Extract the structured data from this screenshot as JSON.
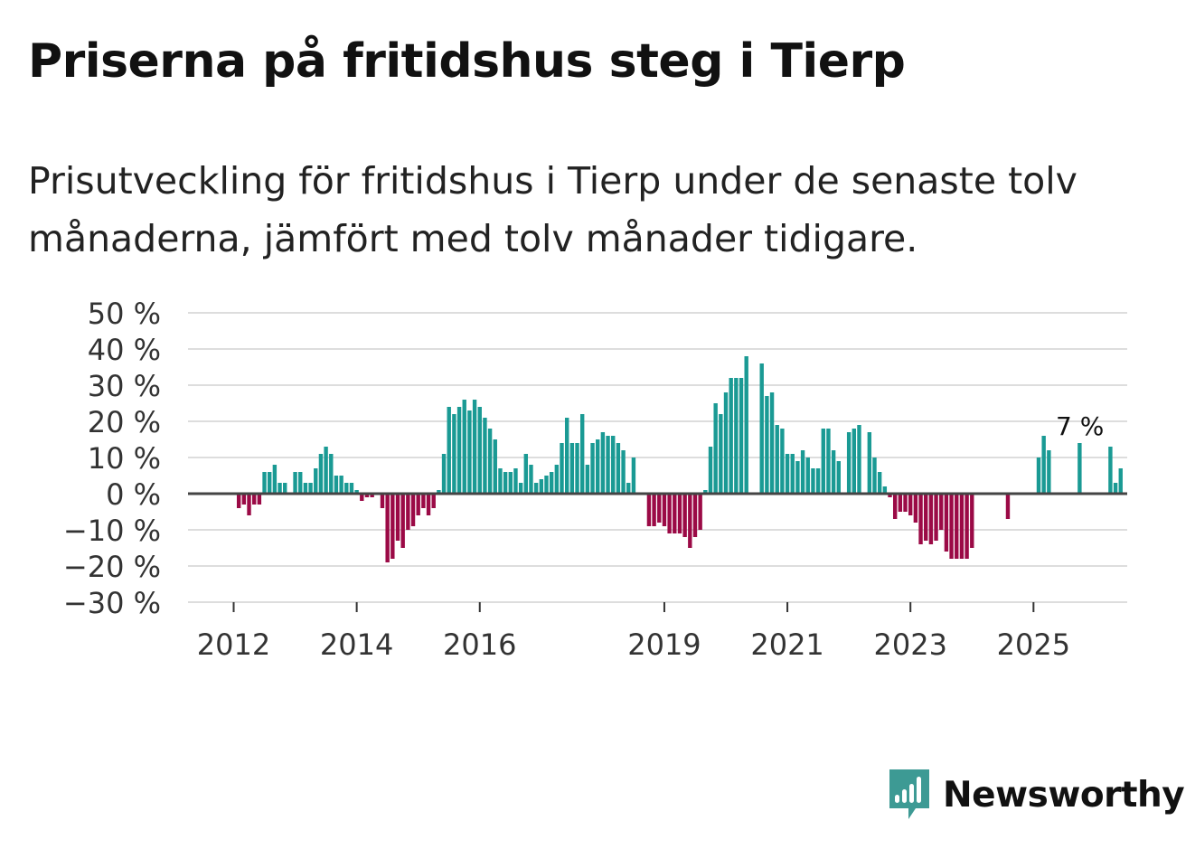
{
  "title": "Priserna på fritidshus steg i Tierp",
  "subtitle": "Prisutveckling för fritidshus i Tierp under de senaste tolv månaderna, jämfört med tolv månader tidigare.",
  "logo": {
    "text": "Newsworthy",
    "icon": "newsworthy-logo-icon"
  },
  "colors": {
    "positive": "#1a9a94",
    "negative": "#9b0a46",
    "grid": "#dddddd",
    "zero_line": "#444444",
    "brand": "#3d9a94"
  },
  "chart_data": {
    "type": "bar",
    "title": "Priserna på fritidshus steg i Tierp",
    "xlabel": "",
    "ylabel": "",
    "ylim": [
      -30,
      50
    ],
    "y_ticks": [
      50,
      40,
      30,
      20,
      10,
      0,
      -10,
      -20,
      -30
    ],
    "y_tick_labels": [
      "50 %",
      "40 %",
      "30 %",
      "20 %",
      "10 %",
      "0 %",
      "−10 %",
      "−20 %",
      "−30 %"
    ],
    "x_ticks": [
      {
        "label": "2012",
        "index": 11
      },
      {
        "label": "2014",
        "index": 35
      },
      {
        "label": "2016",
        "index": 59
      },
      {
        "label": "2019",
        "index": 95
      },
      {
        "label": "2021",
        "index": 119
      },
      {
        "label": "2023",
        "index": 143
      },
      {
        "label": "2025",
        "index": 167
      }
    ],
    "start": "2011-01",
    "frequency": "monthly",
    "annotation": {
      "label": "7 %",
      "index": 174,
      "value": 7
    },
    "values": [
      null,
      null,
      null,
      null,
      null,
      null,
      null,
      null,
      null,
      null,
      null,
      null,
      -4,
      -3,
      -6,
      -3,
      -3,
      6,
      6,
      8,
      3,
      3,
      null,
      6,
      6,
      3,
      3,
      7,
      11,
      13,
      11,
      5,
      5,
      3,
      3,
      1,
      -2,
      -1,
      -1,
      null,
      -4,
      -19,
      -18,
      -13,
      -15,
      -10,
      -9,
      -6,
      -4,
      -6,
      -4,
      1,
      11,
      24,
      22,
      24,
      26,
      23,
      26,
      24,
      21,
      18,
      15,
      7,
      6,
      6,
      7,
      3,
      11,
      8,
      3,
      4,
      5,
      6,
      8,
      14,
      21,
      14,
      14,
      22,
      8,
      14,
      15,
      17,
      16,
      16,
      14,
      12,
      3,
      10,
      null,
      null,
      -9,
      -9,
      -8,
      -9,
      -11,
      -11,
      -11,
      -12,
      -15,
      -12,
      -10,
      1,
      13,
      25,
      22,
      28,
      32,
      32,
      32,
      38,
      null,
      null,
      36,
      27,
      28,
      19,
      18,
      11,
      11,
      9,
      12,
      10,
      7,
      7,
      18,
      18,
      12,
      9,
      null,
      17,
      18,
      19,
      null,
      17,
      10,
      6,
      2,
      -1,
      -7,
      -5,
      -5,
      -6,
      -8,
      -14,
      -13,
      -14,
      -13,
      -10,
      -16,
      -18,
      -18,
      -18,
      -18,
      -15,
      null,
      null,
      null,
      null,
      null,
      null,
      -7,
      null,
      null,
      null,
      null,
      null,
      10,
      16,
      12,
      null,
      null,
      null,
      null,
      null,
      14,
      null,
      null,
      null,
      null,
      null,
      13,
      3,
      7
    ]
  }
}
